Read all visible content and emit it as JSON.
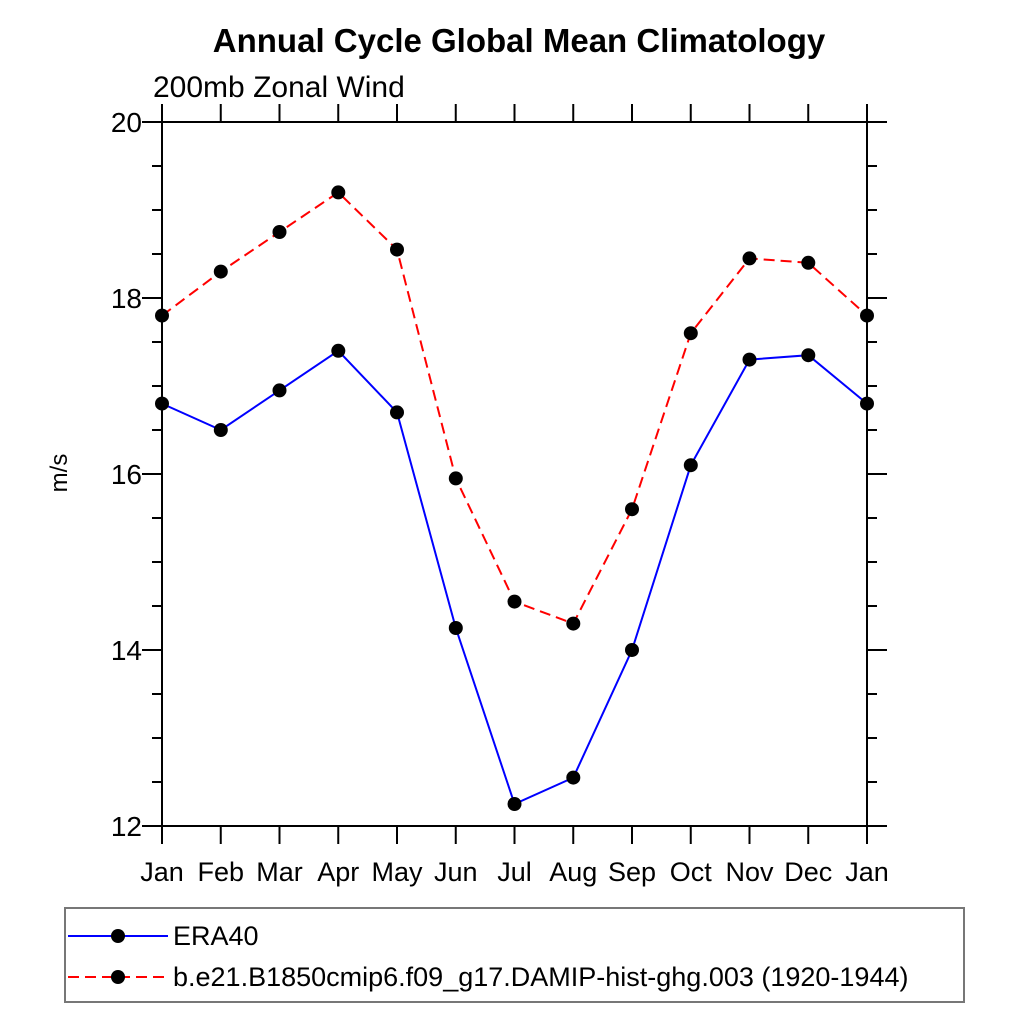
{
  "chart_data": {
    "type": "line",
    "title": "Annual Cycle Global Mean Climatology",
    "subtitle": "200mb Zonal Wind",
    "ylabel": "m/s",
    "xlabel": "",
    "categories": [
      "Jan",
      "Feb",
      "Mar",
      "Apr",
      "May",
      "Jun",
      "Jul",
      "Aug",
      "Sep",
      "Oct",
      "Nov",
      "Dec",
      "Jan"
    ],
    "ylim": [
      12,
      20
    ],
    "yticks": [
      12,
      14,
      16,
      18,
      20
    ],
    "y_minor_interval": 0.5,
    "grid": false,
    "frame": "box-with-outward-ticks",
    "legend_position": "bottom-left-outside",
    "marker": "filled-circle",
    "marker_color": "#000000",
    "series": [
      {
        "name": "ERA40",
        "color": "#0000ff",
        "line_style": "solid",
        "values": [
          16.8,
          16.5,
          16.95,
          17.4,
          16.7,
          14.25,
          12.25,
          12.55,
          14.0,
          16.1,
          17.3,
          17.35,
          16.8
        ]
      },
      {
        "name": "b.e21.B1850cmip6.f09_g17.DAMIP-hist-ghg.003 (1920-1944)",
        "color": "#ff0000",
        "line_style": "dashed",
        "values": [
          17.8,
          18.3,
          18.75,
          19.2,
          18.55,
          15.95,
          14.55,
          14.3,
          15.6,
          17.6,
          18.45,
          18.4,
          17.8
        ]
      }
    ]
  }
}
